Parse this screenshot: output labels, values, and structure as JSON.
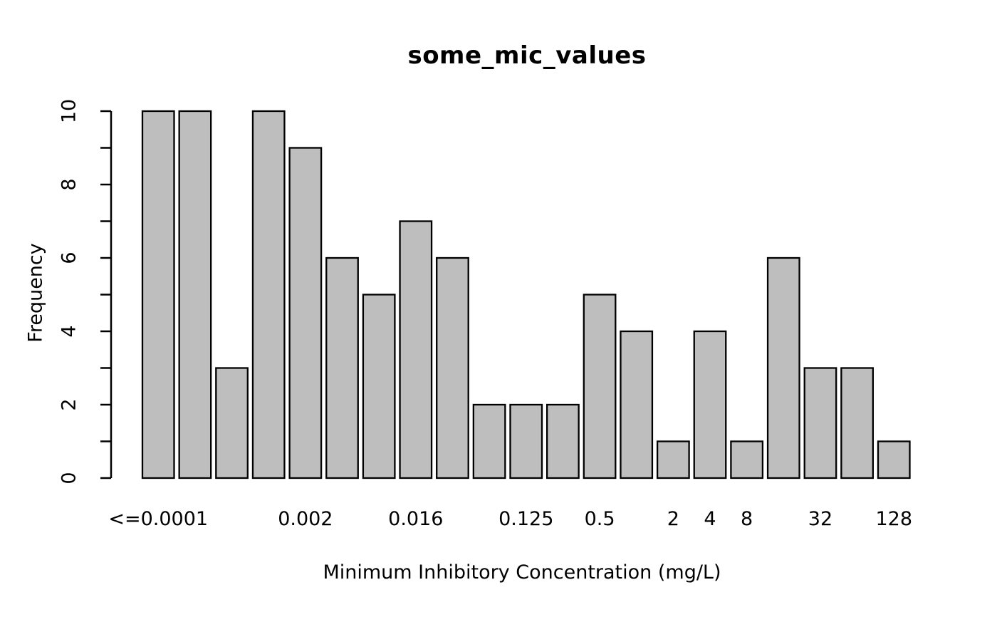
{
  "chart_data": {
    "type": "bar",
    "subtype": "histogram",
    "title": "some_mic_values",
    "xlabel": "Minimum Inhibitory Concentration (mg/L)",
    "ylabel": "Frequency",
    "ylim": [
      0,
      10
    ],
    "ytick_label_values": [
      0,
      2,
      4,
      6,
      8,
      10
    ],
    "ytick_minor_step": 1,
    "grid": false,
    "legend": "none",
    "bar_fill": "#bebebe",
    "bar_stroke": "#000000",
    "axis_color": "#000000",
    "bars": [
      {
        "value": 10,
        "label": "<=0.0001"
      },
      {
        "value": 10,
        "label": ""
      },
      {
        "value": 3,
        "label": ""
      },
      {
        "value": 10,
        "label": ""
      },
      {
        "value": 9,
        "label": "0.002"
      },
      {
        "value": 6,
        "label": ""
      },
      {
        "value": 5,
        "label": ""
      },
      {
        "value": 7,
        "label": "0.016"
      },
      {
        "value": 6,
        "label": ""
      },
      {
        "value": 2,
        "label": ""
      },
      {
        "value": 2,
        "label": "0.125"
      },
      {
        "value": 2,
        "label": ""
      },
      {
        "value": 5,
        "label": "0.5"
      },
      {
        "value": 4,
        "label": ""
      },
      {
        "value": 1,
        "label": "2"
      },
      {
        "value": 4,
        "label": "4"
      },
      {
        "value": 1,
        "label": "8"
      },
      {
        "value": 6,
        "label": ""
      },
      {
        "value": 3,
        "label": "32"
      },
      {
        "value": 3,
        "label": ""
      },
      {
        "value": 1,
        "label": "128"
      }
    ],
    "x_tick_labels_shown": [
      "<=0.0001",
      "0.002",
      "0.016",
      "0.125",
      "0.5",
      "2",
      "4",
      "8",
      "32",
      "128"
    ]
  }
}
